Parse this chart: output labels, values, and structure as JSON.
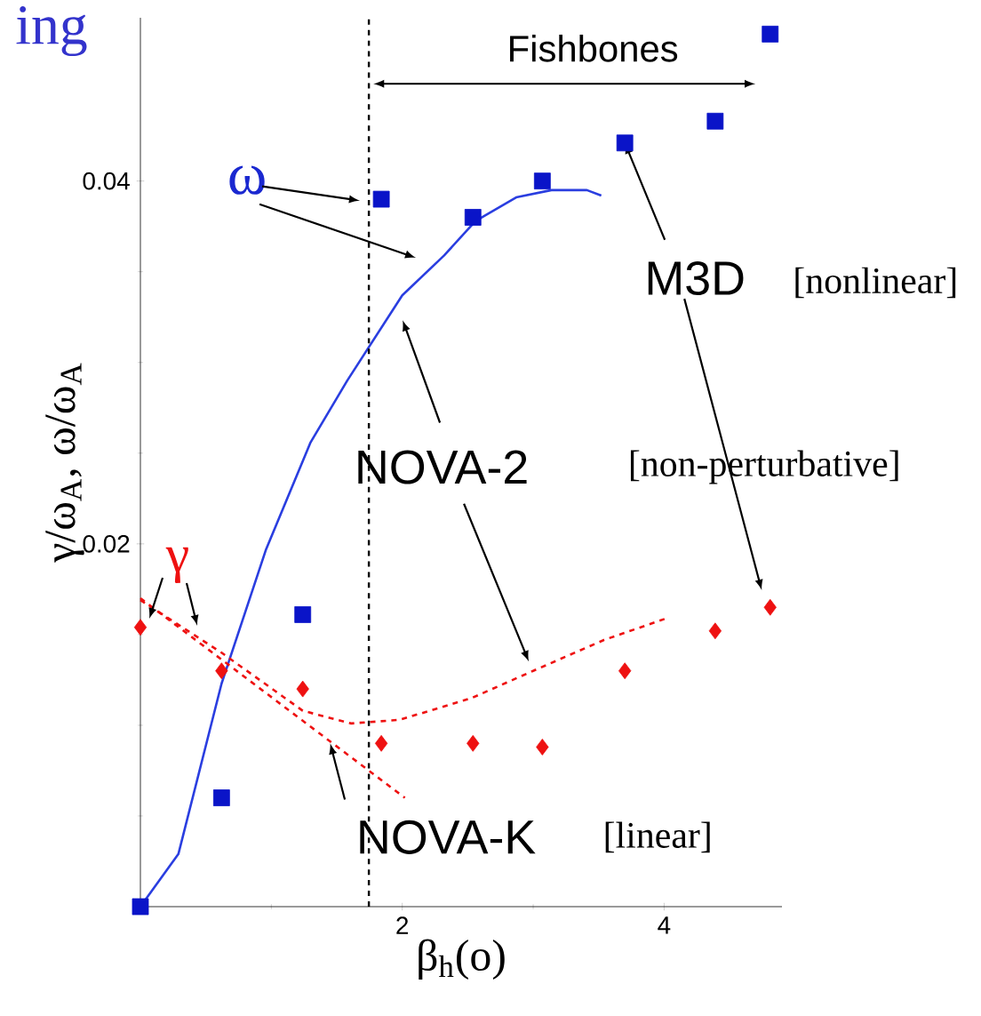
{
  "chart_data": {
    "type": "line",
    "xlabel": "β$_{h}$(o)",
    "ylabel": "γ/ω$_{A}$, ω/ω$_{A}$",
    "xlim": [
      0,
      4.9
    ],
    "ylim": [
      0,
      0.049
    ],
    "xticks": [
      {
        "value": 0,
        "label": null
      },
      2,
      4
    ],
    "yticks": [
      {
        "value": 0,
        "label": null
      },
      0.02,
      0.04
    ],
    "series": [
      {
        "type": "scatter",
        "marker": "square",
        "color": "#0a14c8",
        "x": [
          0,
          0.62,
          1.24,
          1.84,
          2.54,
          3.07,
          3.7,
          4.39,
          4.81
        ],
        "values": [
          0,
          0.006,
          0.0161,
          0.039,
          0.038,
          0.04,
          0.0421,
          0.0433,
          0.0481
        ]
      },
      {
        "type": "scatter",
        "marker": "diamond",
        "color": "#ee1111",
        "x": [
          0,
          0.62,
          1.24,
          1.84,
          2.54,
          3.07,
          3.7,
          4.39,
          4.81
        ],
        "values": [
          0.0154,
          0.013,
          0.012,
          0.009,
          0.009,
          0.0088,
          0.013,
          0.0152,
          0.0165
        ]
      },
      {
        "line_style": "solid",
        "color": "#2a3ee0",
        "x": [
          0,
          0.29,
          0.62,
          0.96,
          1.3,
          1.58,
          2.0,
          2.32,
          2.56,
          2.87,
          3.14,
          3.41,
          3.52
        ],
        "values": [
          0,
          0.0029,
          0.0123,
          0.0197,
          0.0256,
          0.029,
          0.0337,
          0.0359,
          0.0378,
          0.0391,
          0.0395,
          0.0395,
          0.0392
        ]
      },
      {
        "line_style": "dashed",
        "color": "#ee1111",
        "x": [
          0,
          0.62,
          1.24,
          1.61,
          1.98,
          2.53,
          3.0,
          3.54,
          4.02
        ],
        "values": [
          0.0169,
          0.014,
          0.0108,
          0.0101,
          0.0103,
          0.0115,
          0.013,
          0.0147,
          0.0159
        ]
      },
      {
        "line_style": "dashed",
        "color": "#ee1111",
        "x": [
          0,
          2.02
        ],
        "values": [
          0.017,
          0.006
        ]
      }
    ],
    "ref_lines": [
      {
        "axis": "x",
        "value": 1.745,
        "line_style": "dashed",
        "color": "#000000"
      }
    ],
    "annotations": [
      "ing",
      "Fishbones",
      "ω",
      "γ",
      {
        "text": "M3D",
        "x": 3.7,
        "y": 0.0421
      },
      "[nonlinear]",
      "NOVA-2",
      "[non-perturbative]",
      {
        "text": "NOVA-K",
        "x": 1.45,
        "y": 0.009
      },
      "[linear]"
    ]
  }
}
